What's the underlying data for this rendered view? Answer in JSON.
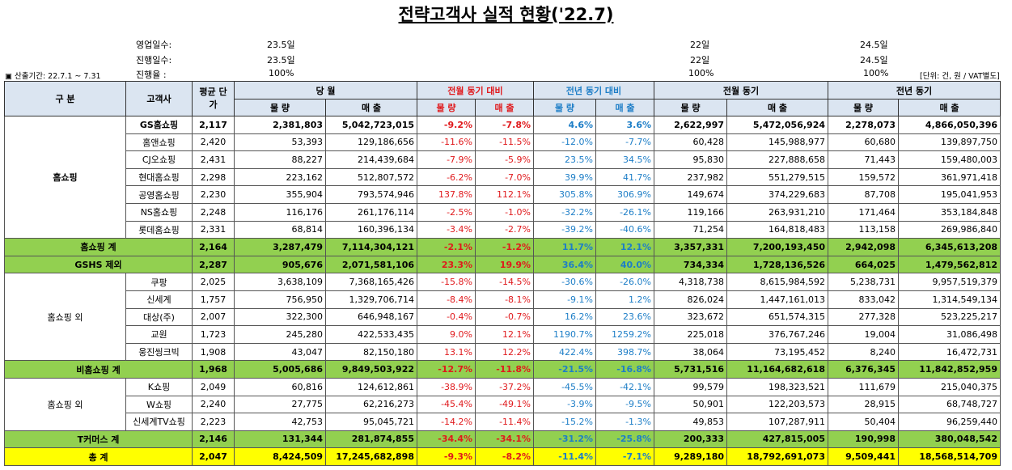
{
  "title": "전략고객사 실적 현황('22.7)",
  "info": {
    "work_days_label": "영업일수:",
    "progress_days_label": "진행일수:",
    "progress_rate_label": "진행율 :",
    "period": "▣ 산출기간: 22.7.1 ~ 7.31",
    "unit": "[단위: 건, 원 / VAT별도]",
    "current": {
      "work_days": "23.5일",
      "progress_days": "23.5일",
      "progress_rate": "100%"
    },
    "prev_month": {
      "work_days": "22일",
      "progress_days": "22일",
      "progress_rate": "100%"
    },
    "prev_year": {
      "work_days": "24.5일",
      "progress_days": "24.5일",
      "progress_rate": "100%"
    }
  },
  "headers": {
    "category": "구 분",
    "customer": "고객사",
    "avg_price": "평균 단가",
    "current": "당 월",
    "mom": "전월 동기 대비",
    "yoy": "전년 동기 대비",
    "prev_month": "전월 동기",
    "prev_year": "전년 동기",
    "qty": "물 량",
    "sales": "매 출"
  },
  "groups": {
    "homeshopping": "홈쇼핑",
    "non_homeshopping": "홈쇼핑 외",
    "tcommerce": "홈쇼핑 외"
  },
  "rows": [
    {
      "name": "GS홈쇼핑",
      "price": "2,117",
      "qty": "2,381,803",
      "sales": "5,042,723,015",
      "mom_q": "-9.2%",
      "mom_s": "-7.8%",
      "yoy_q": "4.6%",
      "yoy_s": "3.6%",
      "pm_q": "2,622,997",
      "pm_s": "5,472,056,924",
      "py_q": "2,278,073",
      "py_s": "4,866,050,396"
    },
    {
      "name": "홈앤쇼핑",
      "price": "2,420",
      "qty": "53,393",
      "sales": "129,186,656",
      "mom_q": "-11.6%",
      "mom_s": "-11.5%",
      "yoy_q": "-12.0%",
      "yoy_s": "-7.7%",
      "pm_q": "60,428",
      "pm_s": "145,988,977",
      "py_q": "60,680",
      "py_s": "139,897,750"
    },
    {
      "name": "CJ오쇼핑",
      "price": "2,431",
      "qty": "88,227",
      "sales": "214,439,684",
      "mom_q": "-7.9%",
      "mom_s": "-5.9%",
      "yoy_q": "23.5%",
      "yoy_s": "34.5%",
      "pm_q": "95,830",
      "pm_s": "227,888,658",
      "py_q": "71,443",
      "py_s": "159,480,003"
    },
    {
      "name": "현대홈쇼핑",
      "price": "2,298",
      "qty": "223,162",
      "sales": "512,807,572",
      "mom_q": "-6.2%",
      "mom_s": "-7.0%",
      "yoy_q": "39.9%",
      "yoy_s": "41.7%",
      "pm_q": "237,982",
      "pm_s": "551,279,515",
      "py_q": "159,572",
      "py_s": "361,971,418"
    },
    {
      "name": "공영홈쇼핑",
      "price": "2,230",
      "qty": "355,904",
      "sales": "793,574,946",
      "mom_q": "137.8%",
      "mom_s": "112.1%",
      "yoy_q": "305.8%",
      "yoy_s": "306.9%",
      "pm_q": "149,674",
      "pm_s": "374,229,683",
      "py_q": "87,708",
      "py_s": "195,041,953"
    },
    {
      "name": "NS홈쇼핑",
      "price": "2,248",
      "qty": "116,176",
      "sales": "261,176,114",
      "mom_q": "-2.5%",
      "mom_s": "-1.0%",
      "yoy_q": "-32.2%",
      "yoy_s": "-26.1%",
      "pm_q": "119,166",
      "pm_s": "263,931,210",
      "py_q": "171,464",
      "py_s": "353,184,848"
    },
    {
      "name": "롯데홈쇼핑",
      "price": "2,331",
      "qty": "68,814",
      "sales": "160,396,134",
      "mom_q": "-3.4%",
      "mom_s": "-2.7%",
      "yoy_q": "-39.2%",
      "yoy_s": "-40.6%",
      "pm_q": "71,254",
      "pm_s": "164,818,483",
      "py_q": "113,158",
      "py_s": "269,986,840"
    },
    {
      "name": "홈쇼핑 계",
      "price": "2,164",
      "qty": "3,287,479",
      "sales": "7,114,304,121",
      "mom_q": "-2.1%",
      "mom_s": "-1.2%",
      "yoy_q": "11.7%",
      "yoy_s": "12.1%",
      "pm_q": "3,357,331",
      "pm_s": "7,200,193,450",
      "py_q": "2,942,098",
      "py_s": "6,345,613,208"
    },
    {
      "name": "GSHS 제외",
      "price": "2,287",
      "qty": "905,676",
      "sales": "2,071,581,106",
      "mom_q": "23.3%",
      "mom_s": "19.9%",
      "yoy_q": "36.4%",
      "yoy_s": "40.0%",
      "pm_q": "734,334",
      "pm_s": "1,728,136,526",
      "py_q": "664,025",
      "py_s": "1,479,562,812"
    },
    {
      "name": "쿠팡",
      "price": "2,025",
      "qty": "3,638,109",
      "sales": "7,368,165,426",
      "mom_q": "-15.8%",
      "mom_s": "-14.5%",
      "yoy_q": "-30.6%",
      "yoy_s": "-26.0%",
      "pm_q": "4,318,738",
      "pm_s": "8,615,984,592",
      "py_q": "5,238,731",
      "py_s": "9,957,519,379"
    },
    {
      "name": "신세계",
      "price": "1,757",
      "qty": "756,950",
      "sales": "1,329,706,714",
      "mom_q": "-8.4%",
      "mom_s": "-8.1%",
      "yoy_q": "-9.1%",
      "yoy_s": "1.2%",
      "pm_q": "826,024",
      "pm_s": "1,447,161,013",
      "py_q": "833,042",
      "py_s": "1,314,549,134"
    },
    {
      "name": "대상(주)",
      "price": "2,007",
      "qty": "322,300",
      "sales": "646,948,167",
      "mom_q": "-0.4%",
      "mom_s": "-0.7%",
      "yoy_q": "16.2%",
      "yoy_s": "23.6%",
      "pm_q": "323,672",
      "pm_s": "651,574,315",
      "py_q": "277,328",
      "py_s": "523,225,217"
    },
    {
      "name": "교원",
      "price": "1,723",
      "qty": "245,280",
      "sales": "422,533,435",
      "mom_q": "9.0%",
      "mom_s": "12.1%",
      "yoy_q": "1190.7%",
      "yoy_s": "1259.2%",
      "pm_q": "225,018",
      "pm_s": "376,767,246",
      "py_q": "19,004",
      "py_s": "31,086,498"
    },
    {
      "name": "웅진씽크빅",
      "price": "1,908",
      "qty": "43,047",
      "sales": "82,150,180",
      "mom_q": "13.1%",
      "mom_s": "12.2%",
      "yoy_q": "422.4%",
      "yoy_s": "398.7%",
      "pm_q": "38,064",
      "pm_s": "73,195,452",
      "py_q": "8,240",
      "py_s": "16,472,731"
    },
    {
      "name": "비홈쇼핑 계",
      "price": "1,968",
      "qty": "5,005,686",
      "sales": "9,849,503,922",
      "mom_q": "-12.7%",
      "mom_s": "-11.8%",
      "yoy_q": "-21.5%",
      "yoy_s": "-16.8%",
      "pm_q": "5,731,516",
      "pm_s": "11,164,682,618",
      "py_q": "6,376,345",
      "py_s": "11,842,852,959"
    },
    {
      "name": "K쇼핑",
      "price": "2,049",
      "qty": "60,816",
      "sales": "124,612,861",
      "mom_q": "-38.9%",
      "mom_s": "-37.2%",
      "yoy_q": "-45.5%",
      "yoy_s": "-42.1%",
      "pm_q": "99,579",
      "pm_s": "198,323,521",
      "py_q": "111,679",
      "py_s": "215,040,375"
    },
    {
      "name": "W쇼핑",
      "price": "2,240",
      "qty": "27,775",
      "sales": "62,216,273",
      "mom_q": "-45.4%",
      "mom_s": "-49.1%",
      "yoy_q": "-3.9%",
      "yoy_s": "-9.5%",
      "pm_q": "50,901",
      "pm_s": "122,203,573",
      "py_q": "28,915",
      "py_s": "68,748,727"
    },
    {
      "name": "신세계TV쇼핑",
      "price": "2,223",
      "qty": "42,753",
      "sales": "95,045,721",
      "mom_q": "-14.2%",
      "mom_s": "-11.4%",
      "yoy_q": "-15.2%",
      "yoy_s": "-1.3%",
      "pm_q": "49,853",
      "pm_s": "107,287,911",
      "py_q": "50,404",
      "py_s": "96,259,440"
    },
    {
      "name": "T커머스 계",
      "price": "2,146",
      "qty": "131,344",
      "sales": "281,874,855",
      "mom_q": "-34.4%",
      "mom_s": "-34.1%",
      "yoy_q": "-31.2%",
      "yoy_s": "-25.8%",
      "pm_q": "200,333",
      "pm_s": "427,815,005",
      "py_q": "190,998",
      "py_s": "380,048,542"
    },
    {
      "name": "총 계",
      "price": "2,047",
      "qty": "8,424,509",
      "sales": "17,245,682,898",
      "mom_q": "-9.3%",
      "mom_s": "-8.2%",
      "yoy_q": "-11.4%",
      "yoy_s": "-7.1%",
      "pm_q": "9,289,180",
      "pm_s": "18,792,691,073",
      "py_q": "9,509,441",
      "py_s": "18,568,514,709"
    }
  ]
}
